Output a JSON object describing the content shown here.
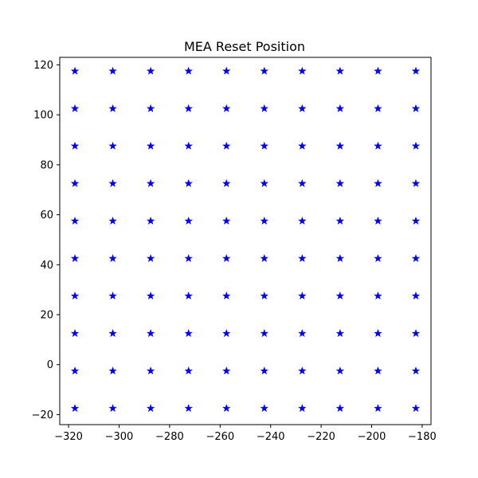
{
  "chart_data": {
    "type": "scatter",
    "title": "MEA Reset Position",
    "xlabel": "",
    "ylabel": "",
    "xlim": [
      -323.5,
      -176.5
    ],
    "ylim": [
      -24.0,
      123.0
    ],
    "x_ticks": [
      -320,
      -300,
      -280,
      -260,
      -240,
      -220,
      -200,
      -180
    ],
    "y_ticks": [
      -20,
      0,
      20,
      40,
      60,
      80,
      100,
      120
    ],
    "grid": false,
    "legend": "none",
    "marker": "star",
    "marker_color": "#0000ff",
    "x_values": [
      -317.5,
      -302.5,
      -287.5,
      -272.5,
      -257.5,
      -242.5,
      -227.5,
      -212.5,
      -197.5,
      -182.5
    ],
    "y_values": [
      -17.5,
      -2.5,
      12.5,
      27.5,
      42.5,
      57.5,
      72.5,
      87.5,
      102.5,
      117.5
    ],
    "point_layout": "full grid of every x_value paired with every y_value (100 points)"
  }
}
